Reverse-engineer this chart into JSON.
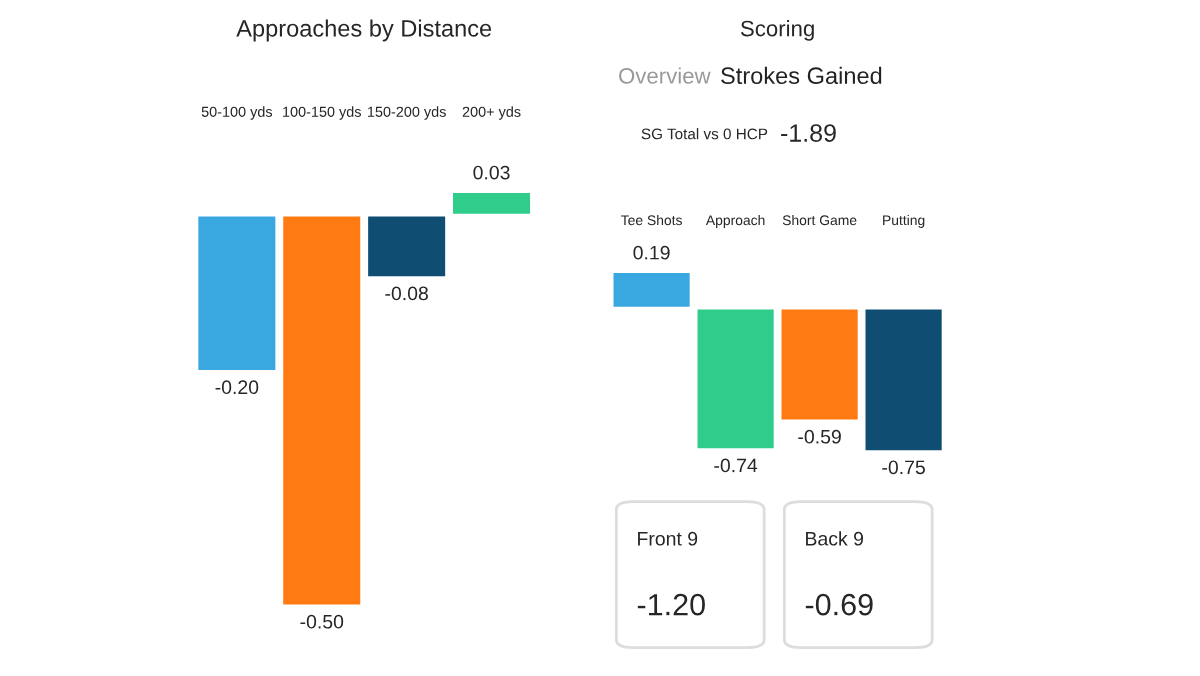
{
  "chart_data": [
    {
      "type": "bar",
      "title": "Approaches by Distance",
      "categories": [
        "50-100 yds",
        "100-150 yds",
        "150-200 yds",
        "200+ yds"
      ],
      "values": [
        -0.2,
        -0.5,
        -0.08,
        0.03
      ],
      "colors": [
        "#3aa8e0",
        "#ff7a12",
        "#0f4d73",
        "#2fcc8b"
      ],
      "value_labels": [
        "-0.20",
        "-0.50",
        "-0.08",
        "0.03"
      ],
      "tick_labels": "x",
      "grid": false,
      "legend": false
    },
    {
      "type": "bar",
      "title": "Scoring",
      "annotations": [
        "Overview",
        "Strokes Gained",
        "SG Total vs 0 HCP",
        "-1.89"
      ],
      "categories": [
        "Tee Shots",
        "Approach",
        "Short Game",
        "Putting"
      ],
      "values": [
        0.19,
        -0.74,
        -0.59,
        -0.75
      ],
      "colors": [
        "#3aa8e0",
        "#2fcc8b",
        "#ff7a12",
        "#0f4d73"
      ],
      "value_labels": [
        "0.19",
        "-0.74",
        "-0.59",
        "-0.75"
      ],
      "tick_labels": "x",
      "grid": false,
      "legend": false
    },
    {
      "type": "other",
      "annotations": [
        "Front 9",
        "-1.20",
        "Back 9",
        "-0.69"
      ]
    }
  ]
}
